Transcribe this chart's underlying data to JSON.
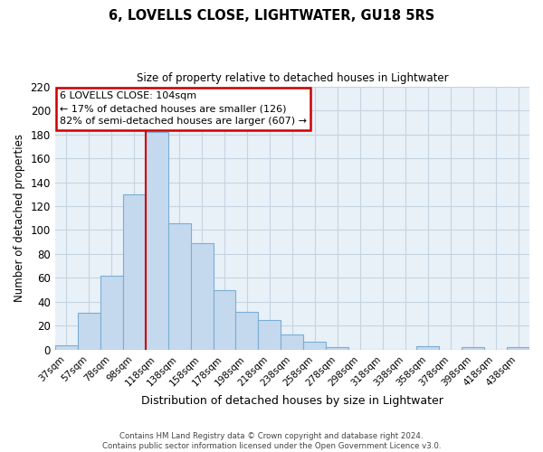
{
  "title": "6, LOVELLS CLOSE, LIGHTWATER, GU18 5RS",
  "subtitle": "Size of property relative to detached houses in Lightwater",
  "xlabel": "Distribution of detached houses by size in Lightwater",
  "ylabel": "Number of detached properties",
  "bar_labels": [
    "37sqm",
    "57sqm",
    "78sqm",
    "98sqm",
    "118sqm",
    "138sqm",
    "158sqm",
    "178sqm",
    "198sqm",
    "218sqm",
    "238sqm",
    "258sqm",
    "278sqm",
    "298sqm",
    "318sqm",
    "338sqm",
    "358sqm",
    "378sqm",
    "398sqm",
    "418sqm",
    "438sqm"
  ],
  "bar_values": [
    4,
    31,
    62,
    130,
    182,
    106,
    89,
    50,
    32,
    25,
    13,
    7,
    2,
    0,
    0,
    0,
    3,
    0,
    2,
    0,
    2
  ],
  "bar_color": "#c5d9ee",
  "bar_edge_color": "#7aaed4",
  "vline_color": "#cc0000",
  "vline_position": 3.5,
  "ylim": [
    0,
    220
  ],
  "yticks": [
    0,
    20,
    40,
    60,
    80,
    100,
    120,
    140,
    160,
    180,
    200,
    220
  ],
  "annotation_title": "6 LOVELLS CLOSE: 104sqm",
  "annotation_line1": "← 17% of detached houses are smaller (126)",
  "annotation_line2": "82% of semi-detached houses are larger (607) →",
  "annotation_box_color": "#ffffff",
  "annotation_box_edge": "#cc0000",
  "footer_line1": "Contains HM Land Registry data © Crown copyright and database right 2024.",
  "footer_line2": "Contains public sector information licensed under the Open Government Licence v3.0.",
  "bg_color": "#ffffff",
  "grid_color": "#c5d4e0"
}
